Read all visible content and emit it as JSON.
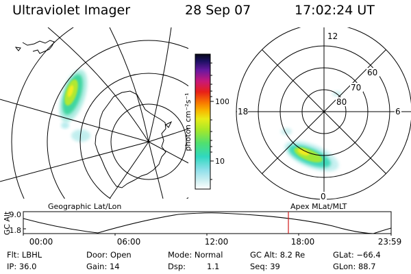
{
  "header": {
    "instrument": "Ultraviolet Imager",
    "date": "28 Sep 07",
    "time": "17:02:24 UT"
  },
  "colorbar": {
    "unit_label": "photon cm⁻²s⁻¹",
    "ticks": [
      "100",
      "10"
    ]
  },
  "polar": {
    "mlt_labels": {
      "top": "12",
      "left": "18",
      "right": "6",
      "bottom": "0"
    },
    "mlat_labels": [
      "60",
      "70",
      "80"
    ]
  },
  "panel_titles": {
    "left": "Geographic Lat/Lon",
    "right": "Apex MLat/MLT"
  },
  "timeline": {
    "ylabel": "GC Alt",
    "y_ticks": [
      "9.0",
      "1.8"
    ],
    "x_ticks": [
      "00:00",
      "06:00",
      "12:00",
      "18:00",
      "23:59"
    ],
    "colors": {
      "current_marker": "#d01818"
    }
  },
  "info": {
    "filter": "Flt: LBHL",
    "door": "Door: Open",
    "mode": "Mode: Normal",
    "gc_alt": "GC Alt: 8.2 Re",
    "glat": "GLat: −66.4",
    "ip": "IP: 36.0",
    "gain": "Gain: 14",
    "dsp_label": "Dsp:",
    "dsp_value": "1.1",
    "seq": "Seq: 39",
    "glon": "GLon: 88.7"
  }
}
